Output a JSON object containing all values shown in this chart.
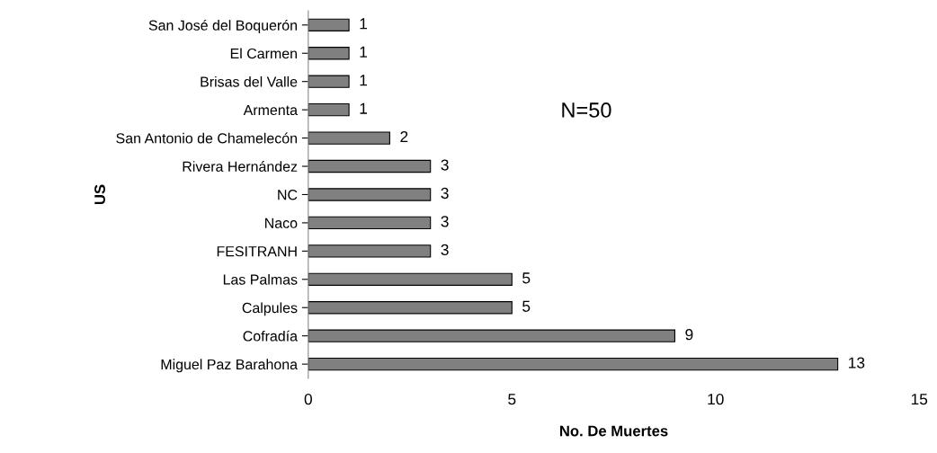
{
  "chart_data": {
    "type": "bar",
    "orientation": "horizontal",
    "categories": [
      "San José del Boquerón",
      "El Carmen",
      "Brisas del Valle",
      "Armenta",
      "San Antonio de Chamelecón",
      "Rivera Hernández",
      "NC",
      "Naco",
      "FESITRANH",
      "Las Palmas",
      "Calpules",
      "Cofradía",
      "Miguel Paz Barahona"
    ],
    "values": [
      1,
      1,
      1,
      1,
      2,
      3,
      3,
      3,
      3,
      5,
      5,
      9,
      13
    ],
    "color": "#808080",
    "xlim": [
      0,
      15
    ],
    "xticks": [
      0,
      5,
      10,
      15
    ],
    "xlabel": "No. De Muertes",
    "ylabel": "US",
    "annotations": [
      "N=50"
    ],
    "data_labels": true,
    "grid": false,
    "legend": false
  }
}
